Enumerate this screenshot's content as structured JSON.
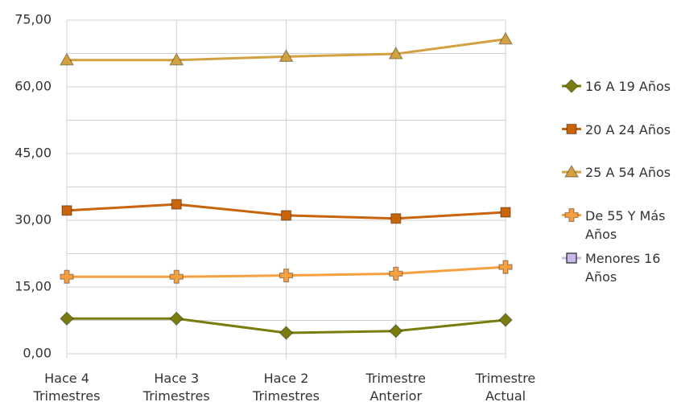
{
  "chart_data": {
    "type": "line",
    "categories": [
      "Hace 4 Trimestres",
      "Hace 3 Trimestres",
      "Hace 2 Trimestres",
      "Trimestre Anterior",
      "Trimestre Actual"
    ],
    "series": [
      {
        "name": "16 A 19 Años",
        "color": "#7a7d0e",
        "marker": "diamond",
        "values": [
          7.9,
          7.9,
          4.7,
          5.1,
          7.6
        ]
      },
      {
        "name": "20 A 24 Años",
        "color": "#c8640a",
        "marker": "square",
        "values": [
          32.2,
          33.6,
          31.1,
          30.4,
          31.8
        ]
      },
      {
        "name": "25 A 54 Años",
        "color": "#d3a13f",
        "marker": "triangle",
        "values": [
          66.0,
          66.0,
          66.8,
          67.4,
          70.7
        ]
      },
      {
        "name": "De 55 Y Más Años",
        "color": "#f7a040",
        "marker": "plus",
        "values": [
          17.3,
          17.3,
          17.6,
          18.0,
          19.5
        ]
      },
      {
        "name": "Menores 16 Años",
        "color": "#c9b8e6",
        "marker": "square",
        "values": [
          null,
          null,
          null,
          null,
          null
        ]
      }
    ],
    "ylim": [
      0,
      75
    ],
    "yticks": [
      {
        "value": 0,
        "label": "0,00"
      },
      {
        "value": 15,
        "label": "15,00"
      },
      {
        "value": 30,
        "label": "30,00"
      },
      {
        "value": 45,
        "label": "45,00"
      },
      {
        "value": 60,
        "label": "60,00"
      },
      {
        "value": 75,
        "label": "75,00"
      }
    ],
    "minor_grid": [
      7.5,
      22.5,
      37.5,
      52.5,
      67.5
    ],
    "grid": true
  }
}
